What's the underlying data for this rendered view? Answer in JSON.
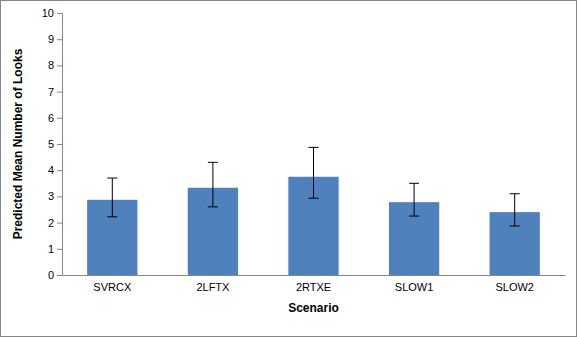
{
  "chart_data": {
    "type": "bar",
    "x_label": "Scenario",
    "y_label": "Predicted Mean Number of Looks",
    "categories": [
      "SVRCX",
      "2LFTX",
      "2RTXE",
      "SLOW1",
      "SLOW2"
    ],
    "values": [
      2.87,
      3.33,
      3.75,
      2.78,
      2.4
    ],
    "lower": [
      2.22,
      2.6,
      2.93,
      2.25,
      1.87
    ],
    "upper": [
      3.7,
      4.3,
      4.87,
      3.5,
      3.1
    ],
    "color": "#4f81bd",
    "ylim": [
      0,
      10
    ],
    "yticks": [
      0,
      1,
      2,
      3,
      4,
      5,
      6,
      7,
      8,
      9,
      10
    ],
    "grid": false
  }
}
